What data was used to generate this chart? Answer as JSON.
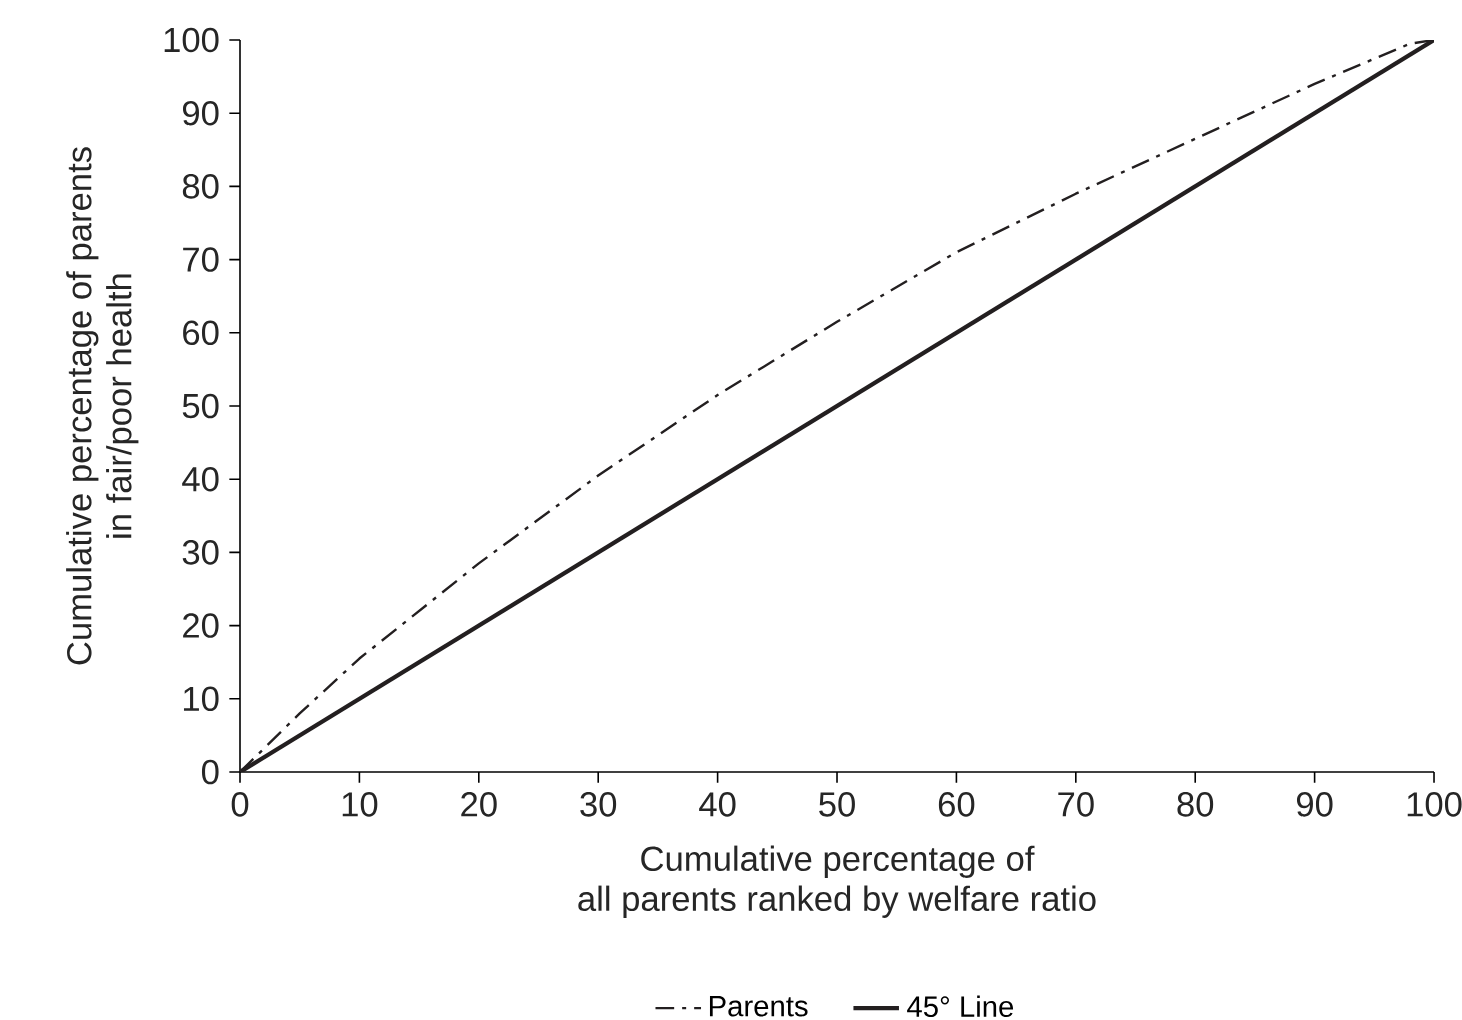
{
  "chart_data": {
    "type": "line",
    "xlabel": "Cumulative percentage of\nall parents ranked by welfare ratio",
    "ylabel": "Cumulative percentage of parents\nin fair/poor health",
    "xlim": [
      0,
      100
    ],
    "ylim": [
      0,
      100
    ],
    "xticks": [
      0,
      10,
      20,
      30,
      40,
      50,
      60,
      70,
      80,
      90,
      100
    ],
    "yticks": [
      0,
      10,
      20,
      30,
      40,
      50,
      60,
      70,
      80,
      90,
      100
    ],
    "grid": false,
    "legend": "bottom",
    "marker": "none",
    "series": [
      {
        "name": "Parents",
        "color": "#231f20",
        "line_style": "dashed",
        "x": [
          0,
          5,
          10,
          20,
          30,
          40,
          50,
          60,
          70,
          80,
          90,
          98,
          100
        ],
        "values": [
          0,
          8,
          15.5,
          28.5,
          40.5,
          51.5,
          61.5,
          71,
          79,
          86.5,
          94,
          99.5,
          100
        ]
      },
      {
        "name": "45° Line",
        "color": "#231f20",
        "line_style": "solid",
        "x": [
          0,
          100
        ],
        "values": [
          0,
          100
        ]
      }
    ]
  }
}
